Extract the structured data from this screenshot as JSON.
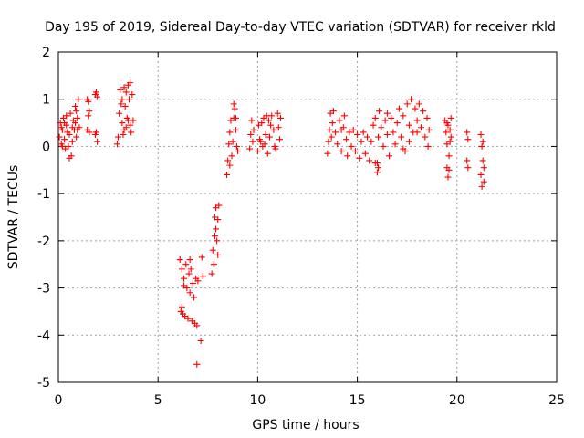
{
  "chart_data": {
    "type": "scatter",
    "title": "Day 195 of 2019, Sidereal Day-to-day VTEC variation (SDTVAR) for receiver rkld",
    "xlabel": "GPS time / hours",
    "ylabel": "SDTVAR / TECUs",
    "xlim": [
      0,
      25
    ],
    "ylim": [
      -5,
      2
    ],
    "xticks": [
      0,
      5,
      10,
      15,
      20,
      25
    ],
    "yticks": [
      -5,
      -4,
      -3,
      -2,
      -1,
      0,
      1,
      2
    ],
    "xtick_labels": [
      "0",
      "5",
      "10",
      "15",
      "20",
      "25"
    ],
    "ytick_labels": [
      "-5",
      "-4",
      "-3",
      "-2",
      "-1",
      "0",
      "1",
      "2"
    ],
    "grid": true,
    "marker": "+",
    "color": "#ff0000",
    "series": [
      {
        "name": "SDTVAR",
        "points": [
          [
            0.05,
            0.2
          ],
          [
            0.1,
            0.5
          ],
          [
            0.15,
            0.05
          ],
          [
            0.2,
            0.35
          ],
          [
            0.25,
            0.6
          ],
          [
            0.3,
            0.15
          ],
          [
            0.35,
            -0.05
          ],
          [
            0.4,
            0.45
          ],
          [
            0.45,
            0.3
          ],
          [
            0.5,
            0.0
          ],
          [
            0.55,
            0.25
          ],
          [
            0.6,
            0.7
          ],
          [
            0.65,
            -0.2
          ],
          [
            0.7,
            0.1
          ],
          [
            0.75,
            0.55
          ],
          [
            0.8,
            0.35
          ],
          [
            0.85,
            0.85
          ],
          [
            0.9,
            0.2
          ],
          [
            0.95,
            0.6
          ],
          [
            1.0,
            1.0
          ],
          [
            1.05,
            0.4
          ],
          [
            0.55,
            -0.25
          ],
          [
            0.2,
            0.0
          ],
          [
            0.7,
            0.4
          ],
          [
            0.9,
            0.75
          ],
          [
            0.4,
            0.65
          ],
          [
            0.15,
            0.4
          ],
          [
            0.95,
            0.35
          ],
          [
            0.3,
            0.5
          ],
          [
            0.85,
            0.5
          ],
          [
            1.45,
            1.0
          ],
          [
            1.5,
            0.95
          ],
          [
            1.55,
            0.75
          ],
          [
            1.5,
            0.65
          ],
          [
            1.45,
            0.35
          ],
          [
            1.55,
            0.3
          ],
          [
            1.85,
            1.1
          ],
          [
            1.9,
            1.15
          ],
          [
            1.95,
            1.05
          ],
          [
            1.9,
            0.3
          ],
          [
            1.95,
            0.1
          ],
          [
            1.85,
            0.25
          ],
          [
            2.95,
            0.05
          ],
          [
            3.0,
            0.2
          ],
          [
            3.05,
            0.7
          ],
          [
            3.1,
            1.2
          ],
          [
            3.15,
            0.9
          ],
          [
            3.2,
            0.5
          ],
          [
            3.25,
            0.25
          ],
          [
            3.3,
            1.25
          ],
          [
            3.35,
            0.85
          ],
          [
            3.4,
            0.4
          ],
          [
            3.45,
            0.6
          ],
          [
            3.5,
            1.3
          ],
          [
            3.55,
            1.0
          ],
          [
            3.6,
            0.45
          ],
          [
            3.65,
            0.3
          ],
          [
            3.7,
            1.1
          ],
          [
            3.75,
            0.55
          ],
          [
            3.4,
            1.15
          ],
          [
            3.6,
            1.35
          ],
          [
            3.2,
            1.0
          ],
          [
            3.3,
            0.35
          ],
          [
            3.5,
            0.55
          ],
          [
            6.1,
            -2.4
          ],
          [
            6.15,
            -3.5
          ],
          [
            6.2,
            -2.6
          ],
          [
            6.25,
            -3.55
          ],
          [
            6.3,
            -2.8
          ],
          [
            6.35,
            -3.6
          ],
          [
            6.4,
            -2.5
          ],
          [
            6.45,
            -3.0
          ],
          [
            6.5,
            -3.65
          ],
          [
            6.55,
            -2.7
          ],
          [
            6.6,
            -3.1
          ],
          [
            6.65,
            -2.6
          ],
          [
            6.7,
            -3.7
          ],
          [
            6.75,
            -2.9
          ],
          [
            6.8,
            -3.2
          ],
          [
            6.85,
            -3.75
          ],
          [
            6.9,
            -2.8
          ],
          [
            6.95,
            -3.8
          ],
          [
            7.0,
            -2.85
          ],
          [
            6.95,
            -4.62
          ],
          [
            7.15,
            -4.12
          ],
          [
            7.2,
            -2.35
          ],
          [
            7.25,
            -2.75
          ],
          [
            6.3,
            -2.95
          ],
          [
            6.6,
            -2.4
          ],
          [
            6.2,
            -3.4
          ],
          [
            7.7,
            -2.7
          ],
          [
            7.75,
            -2.2
          ],
          [
            7.8,
            -2.5
          ],
          [
            7.85,
            -1.9
          ],
          [
            7.9,
            -1.3
          ],
          [
            7.95,
            -2.0
          ],
          [
            8.0,
            -1.55
          ],
          [
            8.05,
            -1.25
          ],
          [
            7.85,
            -1.5
          ],
          [
            8.0,
            -2.3
          ],
          [
            7.9,
            -1.75
          ],
          [
            8.45,
            -0.6
          ],
          [
            8.5,
            -0.3
          ],
          [
            8.55,
            0.05
          ],
          [
            8.6,
            0.3
          ],
          [
            8.65,
            0.55
          ],
          [
            8.7,
            -0.2
          ],
          [
            8.75,
            0.1
          ],
          [
            8.8,
            0.6
          ],
          [
            8.85,
            0.8
          ],
          [
            8.9,
            0.35
          ],
          [
            8.95,
            0.0
          ],
          [
            9.0,
            -0.1
          ],
          [
            8.6,
            -0.4
          ],
          [
            8.8,
            0.9
          ],
          [
            8.9,
            0.6
          ],
          [
            9.6,
            -0.05
          ],
          [
            9.65,
            0.25
          ],
          [
            9.7,
            0.55
          ],
          [
            9.75,
            0.1
          ],
          [
            9.8,
            0.35
          ],
          [
            10.0,
            -0.1
          ],
          [
            10.05,
            0.45
          ],
          [
            10.1,
            0.15
          ],
          [
            10.2,
            0.5
          ],
          [
            10.25,
            0.0
          ],
          [
            10.3,
            0.6
          ],
          [
            10.4,
            0.25
          ],
          [
            10.5,
            -0.15
          ],
          [
            10.55,
            0.55
          ],
          [
            10.6,
            0.2
          ],
          [
            10.7,
            0.65
          ],
          [
            10.8,
            0.35
          ],
          [
            10.9,
            -0.05
          ],
          [
            11.0,
            0.7
          ],
          [
            11.05,
            0.4
          ],
          [
            11.1,
            0.15
          ],
          [
            11.15,
            0.6
          ],
          [
            10.15,
            0.1
          ],
          [
            10.35,
            0.05
          ],
          [
            10.65,
            0.45
          ],
          [
            10.85,
            0.0
          ],
          [
            10.45,
            0.65
          ],
          [
            13.5,
            -0.15
          ],
          [
            13.55,
            0.1
          ],
          [
            13.6,
            0.35
          ],
          [
            13.65,
            0.7
          ],
          [
            13.7,
            0.2
          ],
          [
            13.75,
            0.5
          ],
          [
            13.8,
            0.75
          ],
          [
            13.9,
            0.3
          ],
          [
            14.0,
            0.05
          ],
          [
            14.1,
            0.55
          ],
          [
            14.2,
            -0.1
          ],
          [
            14.3,
            0.4
          ],
          [
            14.35,
            0.65
          ],
          [
            14.45,
            0.15
          ],
          [
            14.5,
            -0.2
          ],
          [
            14.6,
            0.3
          ],
          [
            14.7,
            0.0
          ],
          [
            14.8,
            0.35
          ],
          [
            14.9,
            -0.1
          ],
          [
            15.0,
            0.25
          ],
          [
            15.1,
            -0.25
          ],
          [
            15.2,
            0.1
          ],
          [
            15.3,
            0.3
          ],
          [
            15.4,
            -0.15
          ],
          [
            15.5,
            0.2
          ],
          [
            15.6,
            -0.3
          ],
          [
            15.7,
            0.1
          ],
          [
            15.8,
            0.45
          ],
          [
            15.9,
            0.6
          ],
          [
            16.0,
            -0.35
          ],
          [
            16.05,
            0.2
          ],
          [
            16.1,
            0.75
          ],
          [
            16.2,
            0.4
          ],
          [
            16.3,
            0.0
          ],
          [
            16.4,
            0.55
          ],
          [
            16.5,
            0.25
          ],
          [
            16.6,
            -0.2
          ],
          [
            16.7,
            0.6
          ],
          [
            16.8,
            0.3
          ],
          [
            16.9,
            0.05
          ],
          [
            17.0,
            0.5
          ],
          [
            17.1,
            0.8
          ],
          [
            17.2,
            0.2
          ],
          [
            17.3,
            0.65
          ],
          [
            17.4,
            -0.1
          ],
          [
            17.5,
            0.9
          ],
          [
            17.6,
            0.45
          ],
          [
            17.7,
            1.0
          ],
          [
            17.8,
            0.3
          ],
          [
            17.9,
            0.8
          ],
          [
            18.0,
            0.55
          ],
          [
            18.1,
            0.9
          ],
          [
            18.2,
            0.4
          ],
          [
            18.3,
            0.75
          ],
          [
            18.4,
            0.2
          ],
          [
            18.5,
            0.6
          ],
          [
            18.55,
            0.0
          ],
          [
            18.6,
            0.35
          ],
          [
            16.0,
            -0.55
          ],
          [
            16.05,
            -0.45
          ],
          [
            15.9,
            -0.35
          ],
          [
            14.2,
            0.35
          ],
          [
            17.3,
            -0.05
          ],
          [
            17.6,
            0.1
          ],
          [
            16.5,
            0.7
          ],
          [
            18.0,
            0.3
          ],
          [
            19.4,
            0.55
          ],
          [
            19.45,
            0.3
          ],
          [
            19.5,
            0.05
          ],
          [
            19.55,
            0.45
          ],
          [
            19.6,
            -0.2
          ],
          [
            19.65,
            0.35
          ],
          [
            19.7,
            0.6
          ],
          [
            19.5,
            -0.45
          ],
          [
            19.55,
            -0.65
          ],
          [
            19.6,
            -0.5
          ],
          [
            19.65,
            0.1
          ],
          [
            19.7,
            0.2
          ],
          [
            19.5,
            0.5
          ],
          [
            20.5,
            0.3
          ],
          [
            20.55,
            0.15
          ],
          [
            20.5,
            -0.3
          ],
          [
            20.55,
            -0.45
          ],
          [
            21.2,
            0.25
          ],
          [
            21.25,
            0.0
          ],
          [
            21.3,
            -0.3
          ],
          [
            21.35,
            -0.75
          ],
          [
            21.25,
            -0.85
          ],
          [
            21.3,
            0.1
          ],
          [
            21.35,
            -0.45
          ],
          [
            21.2,
            -0.6
          ]
        ]
      }
    ]
  }
}
